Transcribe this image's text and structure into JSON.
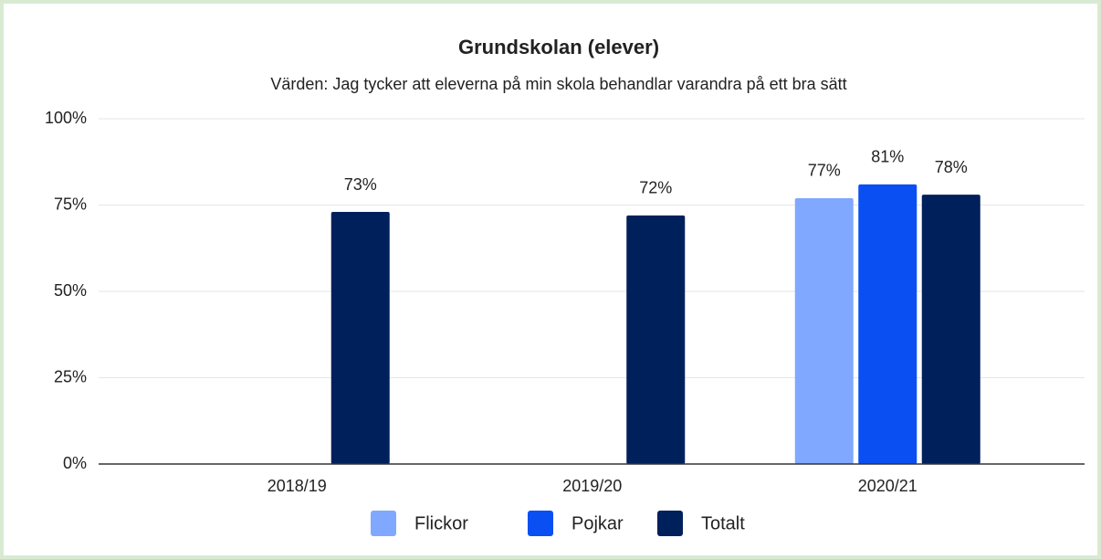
{
  "chart_data": {
    "type": "bar",
    "title": "Grundskolan (elever)",
    "subtitle": "Värden: Jag tycker att eleverna på min skola behandlar varandra på ett bra sätt",
    "categories": [
      "2018/19",
      "2019/20",
      "2020/21"
    ],
    "series": [
      {
        "name": "Flickor",
        "color": "#80a8ff",
        "values": [
          null,
          null,
          77
        ],
        "value_labels": [
          null,
          null,
          "77%"
        ]
      },
      {
        "name": "Pojkar",
        "color": "#0a4ff2",
        "values": [
          null,
          null,
          81
        ],
        "value_labels": [
          null,
          null,
          "81%"
        ]
      },
      {
        "name": "Totalt",
        "color": "#00205b",
        "values": [
          73,
          72,
          78
        ],
        "value_labels": [
          "73%",
          "72%",
          "78%"
        ]
      }
    ],
    "ylim": [
      0,
      100
    ],
    "yticks": [
      {
        "value": 0,
        "label": "0%"
      },
      {
        "value": 25,
        "label": "25%"
      },
      {
        "value": 50,
        "label": "50%"
      },
      {
        "value": 75,
        "label": "75%"
      },
      {
        "value": 100,
        "label": "100%"
      }
    ],
    "grid": true,
    "legend": "bottom"
  }
}
